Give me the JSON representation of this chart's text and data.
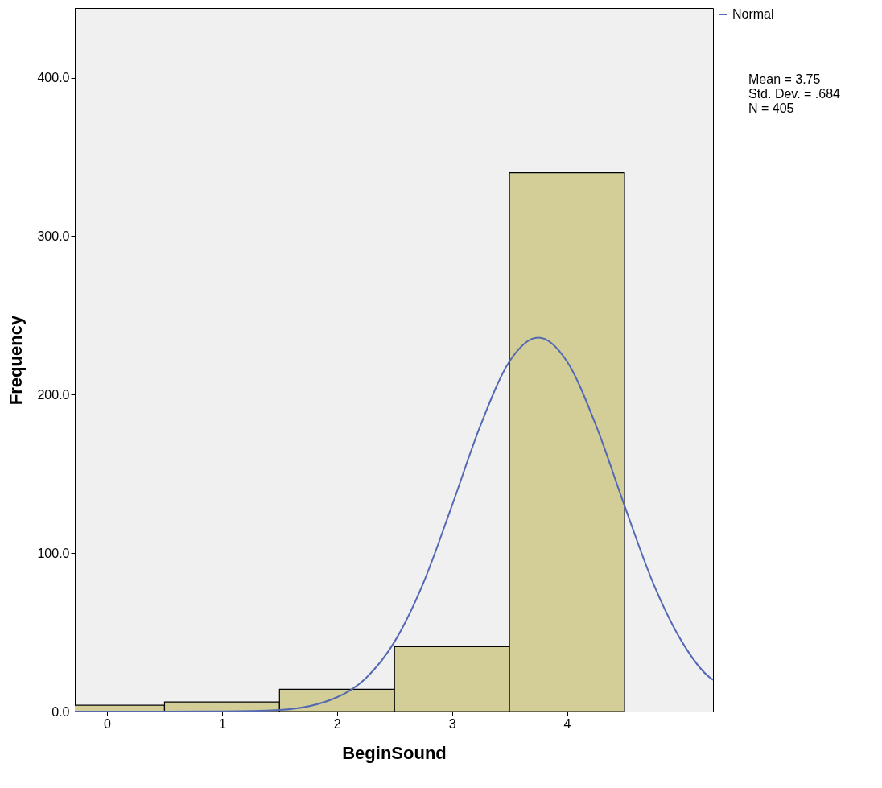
{
  "chart_data": {
    "type": "histogram",
    "xlabel": "BeginSound",
    "ylabel": "Frequency",
    "series": [
      {
        "bins": [
          -0.5,
          0.5,
          1.5,
          2.5,
          3.5,
          4.5
        ],
        "values": [
          4,
          6,
          14,
          41,
          340
        ],
        "color": "#d3ce97"
      },
      {
        "name": "Normal",
        "type": "line",
        "color": "#5468b3",
        "x": [
          -0.28,
          0.5,
          1,
          1.5,
          2,
          2.25,
          2.5,
          2.75,
          3,
          3.25,
          3.5,
          3.75,
          4,
          4.25,
          4.5,
          4.75,
          5,
          5.25,
          5.27
        ],
        "values": [
          0,
          0,
          0.1,
          1,
          9,
          21,
          44,
          81,
          130,
          181,
          221,
          236,
          221,
          181,
          130,
          81,
          44,
          21,
          20
        ]
      }
    ],
    "xlim": [
      -0.28,
      5.27
    ],
    "xticks": [
      0,
      1,
      2,
      3,
      4,
      {
        "value": 5,
        "label": null
      }
    ],
    "ylim": [
      0,
      444
    ],
    "yticks": [
      {
        "value": 0,
        "label": "0.0"
      },
      {
        "value": 100,
        "label": "100.0"
      },
      {
        "value": 200,
        "label": "200.0"
      },
      {
        "value": 300,
        "label": "300.0"
      },
      {
        "value": 400,
        "label": "400.0"
      }
    ],
    "legend": "top right",
    "annotations": [
      "Mean = 3.75",
      "Std. Dev. = .684",
      "N = 405"
    ]
  }
}
